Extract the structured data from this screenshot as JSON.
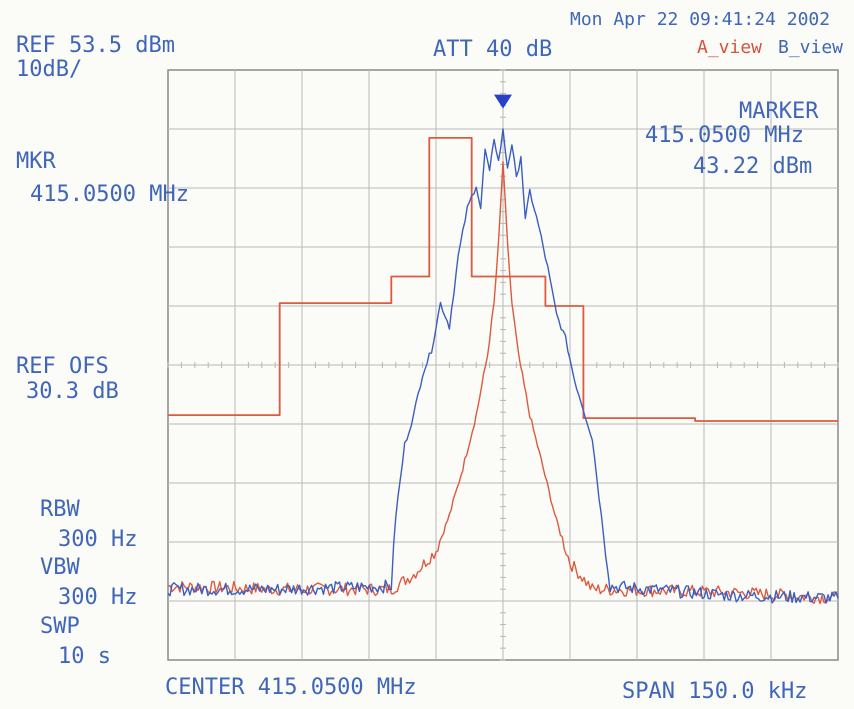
{
  "header": {
    "ref_level": "REF 53.5 dBm",
    "scale": "10dB/",
    "attenuation": "ATT 40 dB",
    "datetime": "Mon Apr 22 09:41:24 2002",
    "view_a": "A_view",
    "view_b": "B_view"
  },
  "marker": {
    "title": "MARKER",
    "freq": "415.0500 MHz",
    "level": "43.22 dBm",
    "mkr_label": "MKR",
    "mkr_freq": "415.0500 MHz"
  },
  "left_panel": {
    "ref_ofs_label": "REF OFS",
    "ref_ofs_value": "30.3 dB",
    "rbw_label": "RBW",
    "rbw_value": "300 Hz",
    "vbw_label": "VBW",
    "vbw_value": "300 Hz",
    "swp_label": "SWP",
    "swp_value": "10 s"
  },
  "footer": {
    "center": "CENTER 415.0500 MHz",
    "span": "SPAN 150.0 kHz"
  },
  "colors": {
    "grid": "#b8b8b8",
    "frame": "#8a8a8a",
    "blue_trace": "#3b5fc0",
    "red_trace": "#dd5a3e",
    "marker": "#2840c8",
    "text": "#3f66b8"
  },
  "chart_data": {
    "type": "line",
    "title": "",
    "xlabel": "",
    "ylabel": "",
    "xlim": [
      414.975,
      415.125
    ],
    "ylim": [
      -46.5,
      53.5
    ],
    "grid": true,
    "series": [
      {
        "name": "",
        "color": "#dd5a3e",
        "kind": "mask",
        "x": [
          414.975,
          415.0,
          415.0,
          415.025,
          415.025,
          415.0335,
          415.0335,
          415.043,
          415.043,
          415.0595,
          415.0595,
          415.068,
          415.068,
          415.093,
          415.093,
          415.125
        ],
        "y": [
          -5.0,
          -5.0,
          14.0,
          14.0,
          18.5,
          18.5,
          42.0,
          42.0,
          18.5,
          18.5,
          13.5,
          13.5,
          -5.5,
          -5.5,
          -6.0,
          -6.0
        ]
      },
      {
        "name": "",
        "color": "#dd5a3e",
        "kind": "trace",
        "x": [
          414.975,
          415.0,
          415.025,
          415.03,
          415.035,
          415.038,
          415.041,
          415.044,
          415.0465,
          415.048,
          415.049,
          415.05,
          415.051,
          415.052,
          415.0535,
          415.056,
          415.059,
          415.062,
          415.065,
          415.07,
          415.1,
          415.125
        ],
        "y": [
          -34.0,
          -34.5,
          -34.5,
          -32.0,
          -28.0,
          -22.0,
          -14.0,
          -5.0,
          5.0,
          14.0,
          24.0,
          38.0,
          24.0,
          14.0,
          5.0,
          -5.0,
          -14.0,
          -23.0,
          -30.0,
          -34.5,
          -35.0,
          -36.0
        ]
      },
      {
        "name": "",
        "color": "#3b5fc0",
        "kind": "trace",
        "x": [
          414.975,
          415.0,
          415.025,
          415.026,
          415.028,
          415.03,
          415.032,
          415.034,
          415.036,
          415.038,
          415.04,
          415.042,
          415.044,
          415.045,
          415.046,
          415.047,
          415.048,
          415.049,
          415.05,
          415.051,
          415.052,
          415.053,
          415.054,
          415.055,
          415.056,
          415.058,
          415.06,
          415.062,
          415.064,
          415.066,
          415.068,
          415.07,
          415.072,
          415.074,
          415.1,
          415.125
        ],
        "y": [
          -34.5,
          -34.5,
          -34.0,
          -22.0,
          -10.0,
          -5.0,
          2.0,
          6.0,
          14.0,
          10.0,
          22.0,
          30.0,
          34.0,
          30.0,
          40.0,
          36.0,
          42.0,
          38.0,
          43.22,
          37.0,
          41.0,
          35.0,
          39.0,
          28.0,
          33.0,
          27.0,
          20.0,
          12.0,
          8.0,
          1.0,
          -4.0,
          -9.0,
          -22.0,
          -34.0,
          -35.5,
          -36.0
        ]
      }
    ],
    "marker_point": {
      "x": 415.05,
      "y": 43.22
    }
  }
}
